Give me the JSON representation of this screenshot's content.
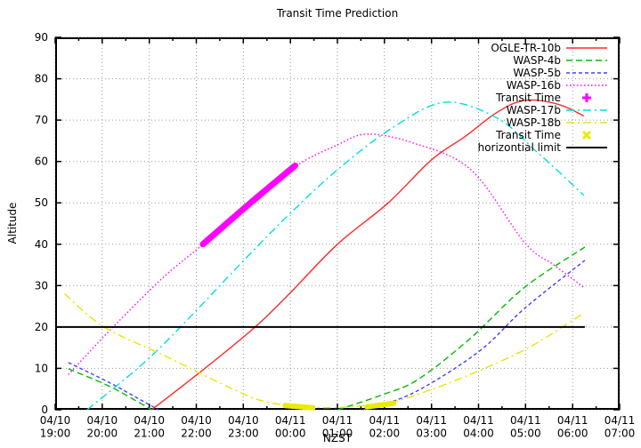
{
  "title": "Transit Time Prediction",
  "chart_data": {
    "type": "line",
    "title": "Transit Time Prediction",
    "xlabel": "NZST",
    "ylabel": "Altitude",
    "ylim": [
      0,
      90
    ],
    "xlim_hours": [
      19,
      31
    ],
    "grid": true,
    "legend_position": "top-right-inside",
    "y_ticks": [
      0,
      10,
      20,
      30,
      40,
      50,
      60,
      70,
      80,
      90
    ],
    "x_ticks": [
      {
        "t": 19,
        "date": "04/10",
        "time": "19:00"
      },
      {
        "t": 20,
        "date": "04/10",
        "time": "20:00"
      },
      {
        "t": 21,
        "date": "04/10",
        "time": "21:00"
      },
      {
        "t": 22,
        "date": "04/10",
        "time": "22:00"
      },
      {
        "t": 23,
        "date": "04/10",
        "time": "23:00"
      },
      {
        "t": 24,
        "date": "04/11",
        "time": "00:00"
      },
      {
        "t": 25,
        "date": "04/11",
        "time": "01:00"
      },
      {
        "t": 26,
        "date": "04/11",
        "time": "02:00"
      },
      {
        "t": 27,
        "date": "04/11",
        "time": "03:00"
      },
      {
        "t": 28,
        "date": "04/11",
        "time": "04:00"
      },
      {
        "t": 29,
        "date": "04/11",
        "time": "05:00"
      },
      {
        "t": 30,
        "date": "04/11",
        "time": "06:00"
      },
      {
        "t": 31,
        "date": "04/11",
        "time": "07:00"
      }
    ],
    "series": [
      {
        "name": "OGLE-TR-10b",
        "color": "#ff2a2a",
        "dash": "solid",
        "width": 1.4,
        "segments": [
          [
            [
              21.05,
              0
            ],
            [
              22.17,
              9.9
            ],
            [
              23.25,
              20
            ],
            [
              24.0,
              28.3
            ],
            [
              25.0,
              40
            ],
            [
              26.08,
              50
            ],
            [
              27.0,
              60.4
            ],
            [
              27.71,
              66
            ],
            [
              28.41,
              72
            ],
            [
              29.0,
              74.8
            ],
            [
              29.7,
              73.8
            ],
            [
              30.24,
              71
            ]
          ]
        ]
      },
      {
        "name": "WASP-4b",
        "color": "#00bb00",
        "dash": "dash-long",
        "width": 1.4,
        "segments": [
          [
            [
              19.28,
              9.9
            ],
            [
              20.13,
              5.8
            ],
            [
              20.7,
              2.3
            ],
            [
              21.05,
              0
            ]
          ],
          [
            [
              25.01,
              0
            ],
            [
              26.0,
              3.8
            ],
            [
              26.71,
              7.3
            ],
            [
              27.8,
              17
            ],
            [
              28.98,
              29.6
            ],
            [
              30.26,
              39.3
            ]
          ]
        ]
      },
      {
        "name": "WASP-5b",
        "color": "#4040ff",
        "dash": "dash-short",
        "width": 1.4,
        "segments": [
          [
            [
              19.28,
              11.4
            ],
            [
              20.13,
              6.7
            ],
            [
              20.8,
              2.5
            ],
            [
              21.2,
              0
            ]
          ],
          [
            [
              25.54,
              0
            ],
            [
              26.6,
              4
            ],
            [
              28.0,
              14
            ],
            [
              28.98,
              24.5
            ],
            [
              30.26,
              36.1
            ]
          ]
        ]
      },
      {
        "name": "WASP-16b",
        "color": "#ff00ff",
        "dash": "dot",
        "width": 1.4,
        "segments": [
          [
            [
              19.28,
              8.5
            ],
            [
              20.23,
              20
            ],
            [
              21.3,
              32
            ],
            [
              22.14,
              40
            ],
            [
              23.0,
              49
            ],
            [
              24.1,
              58.8
            ],
            [
              25.0,
              64
            ],
            [
              25.63,
              66.6
            ],
            [
              26.6,
              64.5
            ],
            [
              27.84,
              58
            ],
            [
              28.98,
              40.4
            ],
            [
              29.6,
              35
            ],
            [
              30.24,
              29.6
            ]
          ]
        ]
      },
      {
        "name": "WASP-17b",
        "color": "#00dddd",
        "dash": "dash-dot",
        "width": 1.4,
        "segments": [
          [
            [
              19.68,
              0
            ],
            [
              20.95,
              12
            ],
            [
              22.0,
              24
            ],
            [
              23.0,
              36
            ],
            [
              24.0,
              47.5
            ],
            [
              25.0,
              58
            ],
            [
              26.15,
              68
            ],
            [
              27.28,
              74.3
            ],
            [
              28.41,
              70.4
            ],
            [
              29.22,
              62.5
            ],
            [
              29.68,
              57.8
            ],
            [
              30.24,
              51.8
            ]
          ]
        ]
      },
      {
        "name": "WASP-18b",
        "color": "#e6e600",
        "dash": "dash-dot",
        "width": 1.4,
        "segments": [
          [
            [
              19.2,
              28
            ],
            [
              20.04,
              20
            ],
            [
              21.32,
              13.1
            ],
            [
              22.87,
              4.5
            ],
            [
              23.5,
              1.9
            ],
            [
              24.3,
              0.7
            ],
            [
              25.1,
              0.6
            ],
            [
              26.0,
              1.6
            ],
            [
              26.46,
              2.8
            ],
            [
              27.6,
              7.5
            ],
            [
              29.03,
              14.8
            ],
            [
              30.24,
              23.4
            ]
          ]
        ]
      },
      {
        "name": "horizontial limit",
        "color": "#000000",
        "dash": "solid",
        "width": 2,
        "segments": [
          [
            [
              19.0,
              20
            ],
            [
              30.26,
              20
            ]
          ]
        ]
      }
    ],
    "transit_markers": [
      {
        "name": "Transit Time",
        "color": "#ff00ff",
        "shape": "plus",
        "width": 7,
        "segments": [
          [
            [
              22.14,
              40
            ],
            [
              23.1,
              49.5
            ],
            [
              24.1,
              59
            ]
          ]
        ]
      },
      {
        "name": "Transit Time",
        "color": "#ebeb00",
        "shape": "cross",
        "width": 6,
        "segments": [
          [
            [
              23.89,
              1.0
            ],
            [
              24.48,
              0.5
            ]
          ],
          [
            [
              25.63,
              0.7
            ],
            [
              26.2,
              1.6
            ]
          ]
        ]
      }
    ]
  },
  "legend": {
    "items": [
      {
        "label": "OGLE-TR-10b",
        "kind": "line",
        "color": "#ff2a2a",
        "dash": "solid"
      },
      {
        "label": "WASP-4b",
        "kind": "line",
        "color": "#00bb00",
        "dash": "dash-long"
      },
      {
        "label": "WASP-5b",
        "kind": "line",
        "color": "#4040ff",
        "dash": "dash-short"
      },
      {
        "label": "WASP-16b",
        "kind": "line",
        "color": "#ff00ff",
        "dash": "dot"
      },
      {
        "label": "Transit Time",
        "kind": "marker",
        "color": "#ff00ff",
        "shape": "plus"
      },
      {
        "label": "WASP-17b",
        "kind": "line",
        "color": "#00dddd",
        "dash": "dash-dot"
      },
      {
        "label": "WASP-18b",
        "kind": "line",
        "color": "#e6e600",
        "dash": "dash-dot"
      },
      {
        "label": "Transit Time",
        "kind": "marker",
        "color": "#ebeb00",
        "shape": "cross"
      },
      {
        "label": "horizontial limit",
        "kind": "line",
        "color": "#000000",
        "dash": "solid"
      }
    ]
  },
  "style": {
    "grid_color": "#9a9a9a",
    "axis_color": "#000000",
    "background": "#ffffff"
  }
}
